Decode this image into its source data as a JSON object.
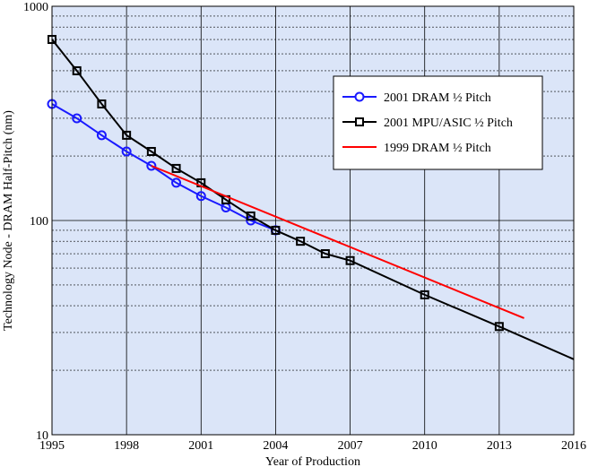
{
  "chart_data": {
    "type": "line",
    "title": "",
    "xlabel": "Year of Production",
    "ylabel": "Technology Node - DRAM Half-Pitch (nm)",
    "xlim": [
      1995,
      2016
    ],
    "ylim": [
      10,
      1000
    ],
    "y_scale": "log",
    "x_ticks": [
      1995,
      1998,
      2001,
      2004,
      2007,
      2010,
      2013,
      2016
    ],
    "x_tick_labels": [
      "1995",
      "1998",
      "2001",
      "2004",
      "2007",
      "2010",
      "2013",
      "2016"
    ],
    "y_ticks": [
      10,
      100,
      1000
    ],
    "y_tick_labels": [
      "10",
      "100",
      "1000"
    ],
    "grid": true,
    "background_color": "#dbe5f8",
    "legend_position": "upper-right",
    "series": [
      {
        "name": "2001 DRAM ½ Pitch",
        "color": "#1a1aff",
        "marker": "circle",
        "x": [
          1995,
          1996,
          1997,
          1998,
          1999,
          2000,
          2001,
          2002,
          2003,
          2004
        ],
        "y": [
          350,
          300,
          250,
          210,
          180,
          150,
          130,
          115,
          100,
          90
        ]
      },
      {
        "name": "2001 MPU/ASIC ½ Pitch",
        "color": "#000000",
        "marker": "square",
        "x": [
          1995,
          1996,
          1997,
          1998,
          1999,
          2000,
          2001,
          2002,
          2003,
          2004,
          2005,
          2006,
          2007,
          2010,
          2013,
          2016
        ],
        "y": [
          700,
          500,
          350,
          250,
          210,
          175,
          150,
          125,
          105,
          90,
          80,
          70,
          65,
          45,
          32,
          22.5
        ],
        "marker_x": [
          1995,
          1996,
          1997,
          1998,
          1999,
          2000,
          2001,
          2002,
          2003,
          2004,
          2005,
          2006,
          2007,
          2010,
          2013
        ]
      },
      {
        "name": "1999 DRAM ½ Pitch",
        "color": "#ff0000",
        "marker": "none",
        "x": [
          1999,
          2014
        ],
        "y": [
          180,
          35
        ]
      }
    ]
  }
}
